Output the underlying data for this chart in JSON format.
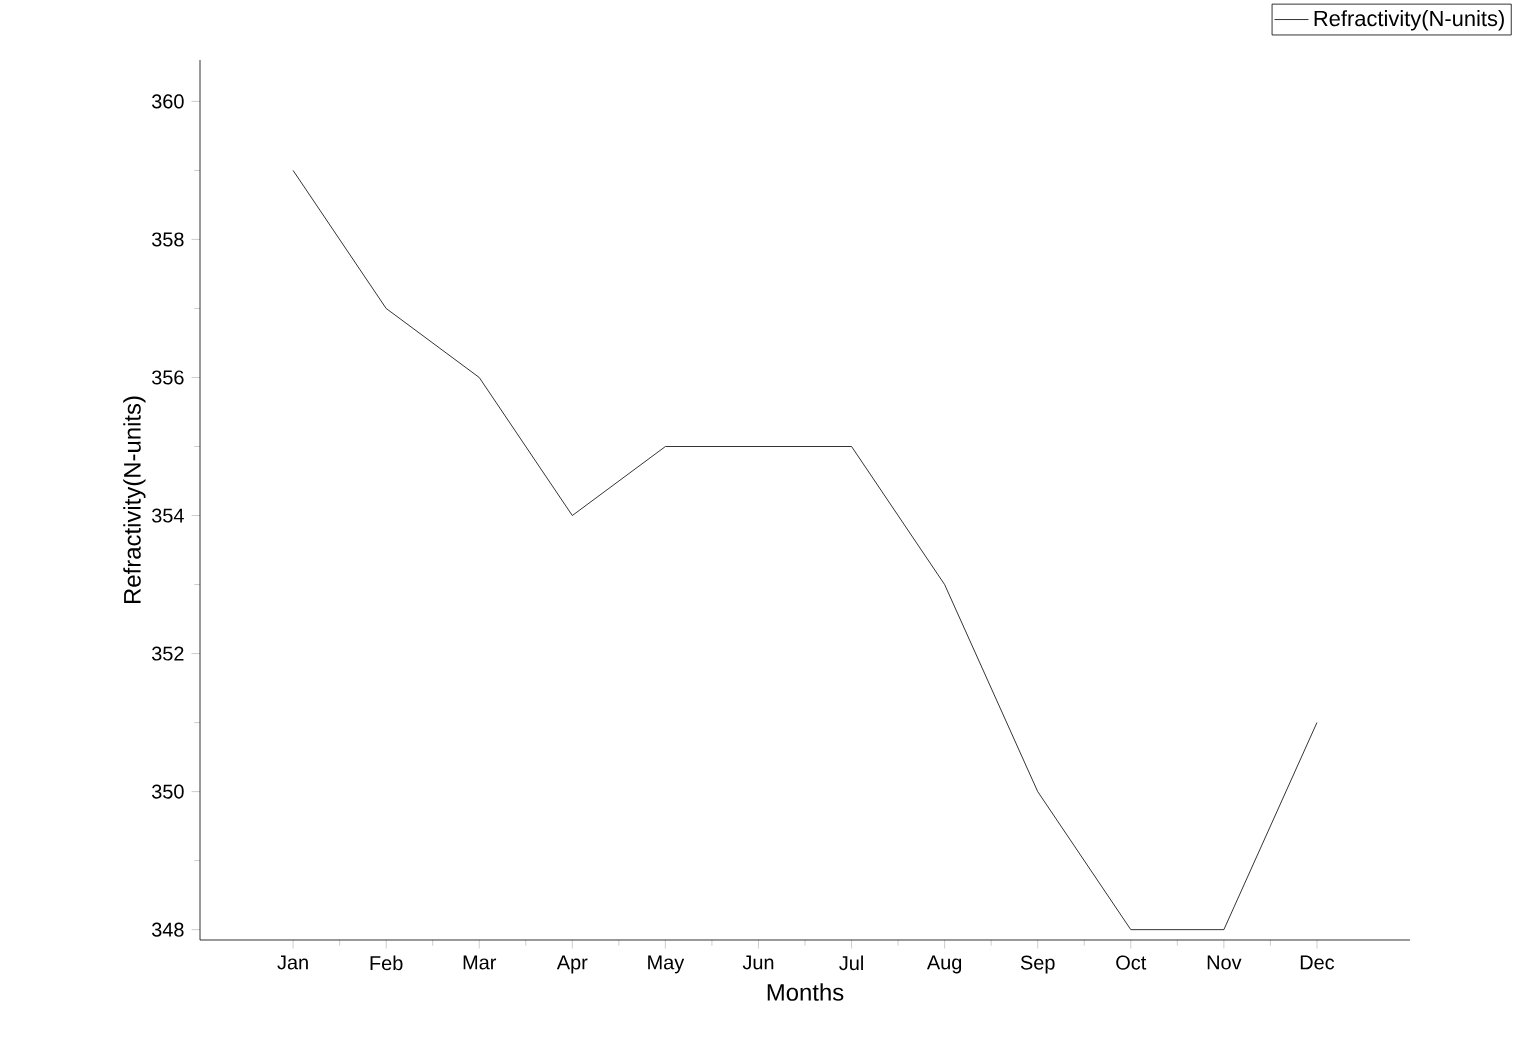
{
  "chart_data": {
    "type": "line",
    "xlabel": "Months",
    "ylabel": "Refractivity(N-units)",
    "categories": [
      "Jan",
      "Feb",
      "Mar",
      "Apr",
      "May",
      "Jun",
      "Jul",
      "Aug",
      "Sep",
      "Oct",
      "Nov",
      "Dec"
    ],
    "series": [
      {
        "name": "Refractivity(N-units)",
        "color": "#000000",
        "values": [
          359,
          357,
          356,
          354,
          355,
          355,
          355,
          353,
          350,
          348,
          348,
          351
        ]
      }
    ],
    "ylim": [
      347.85,
      360.6
    ],
    "yticks": [
      348,
      350,
      352,
      354,
      356,
      358,
      360
    ],
    "legend": "top right",
    "marker": "none"
  }
}
